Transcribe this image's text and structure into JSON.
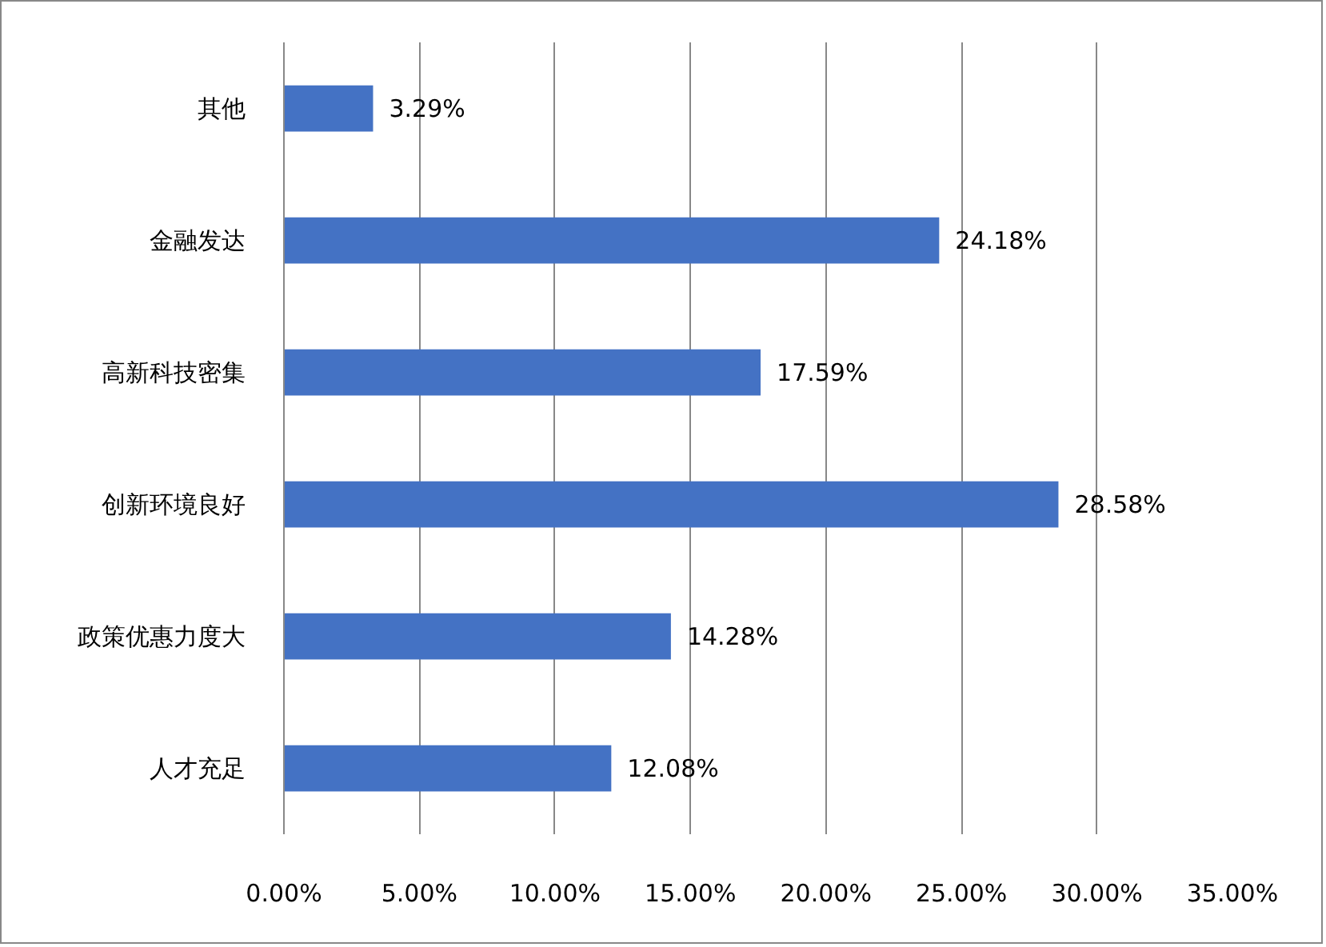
{
  "chart_data": {
    "type": "bar",
    "orientation": "horizontal",
    "categories": [
      "其他",
      "金融发达",
      "高新科技密集",
      "创新环境良好",
      "政策优惠力度大",
      "人才充足"
    ],
    "values": [
      3.29,
      24.18,
      17.59,
      28.58,
      14.28,
      12.08
    ],
    "value_labels": [
      "3.29%",
      "24.18%",
      "17.59%",
      "28.58%",
      "14.28%",
      "12.08%"
    ],
    "color": "#4472c4",
    "xlim": [
      0,
      35
    ],
    "xticks": [
      {
        "value": 0,
        "label": "0.00%"
      },
      {
        "value": 5,
        "label": "5.00%"
      },
      {
        "value": 10,
        "label": "10.00%"
      },
      {
        "value": 15,
        "label": "15.00%"
      },
      {
        "value": 20,
        "label": "20.00%"
      },
      {
        "value": 25,
        "label": "25.00%"
      },
      {
        "value": 30,
        "label": "30.00%"
      },
      {
        "value": 35,
        "label": "35.00%"
      }
    ],
    "grid": "x"
  }
}
